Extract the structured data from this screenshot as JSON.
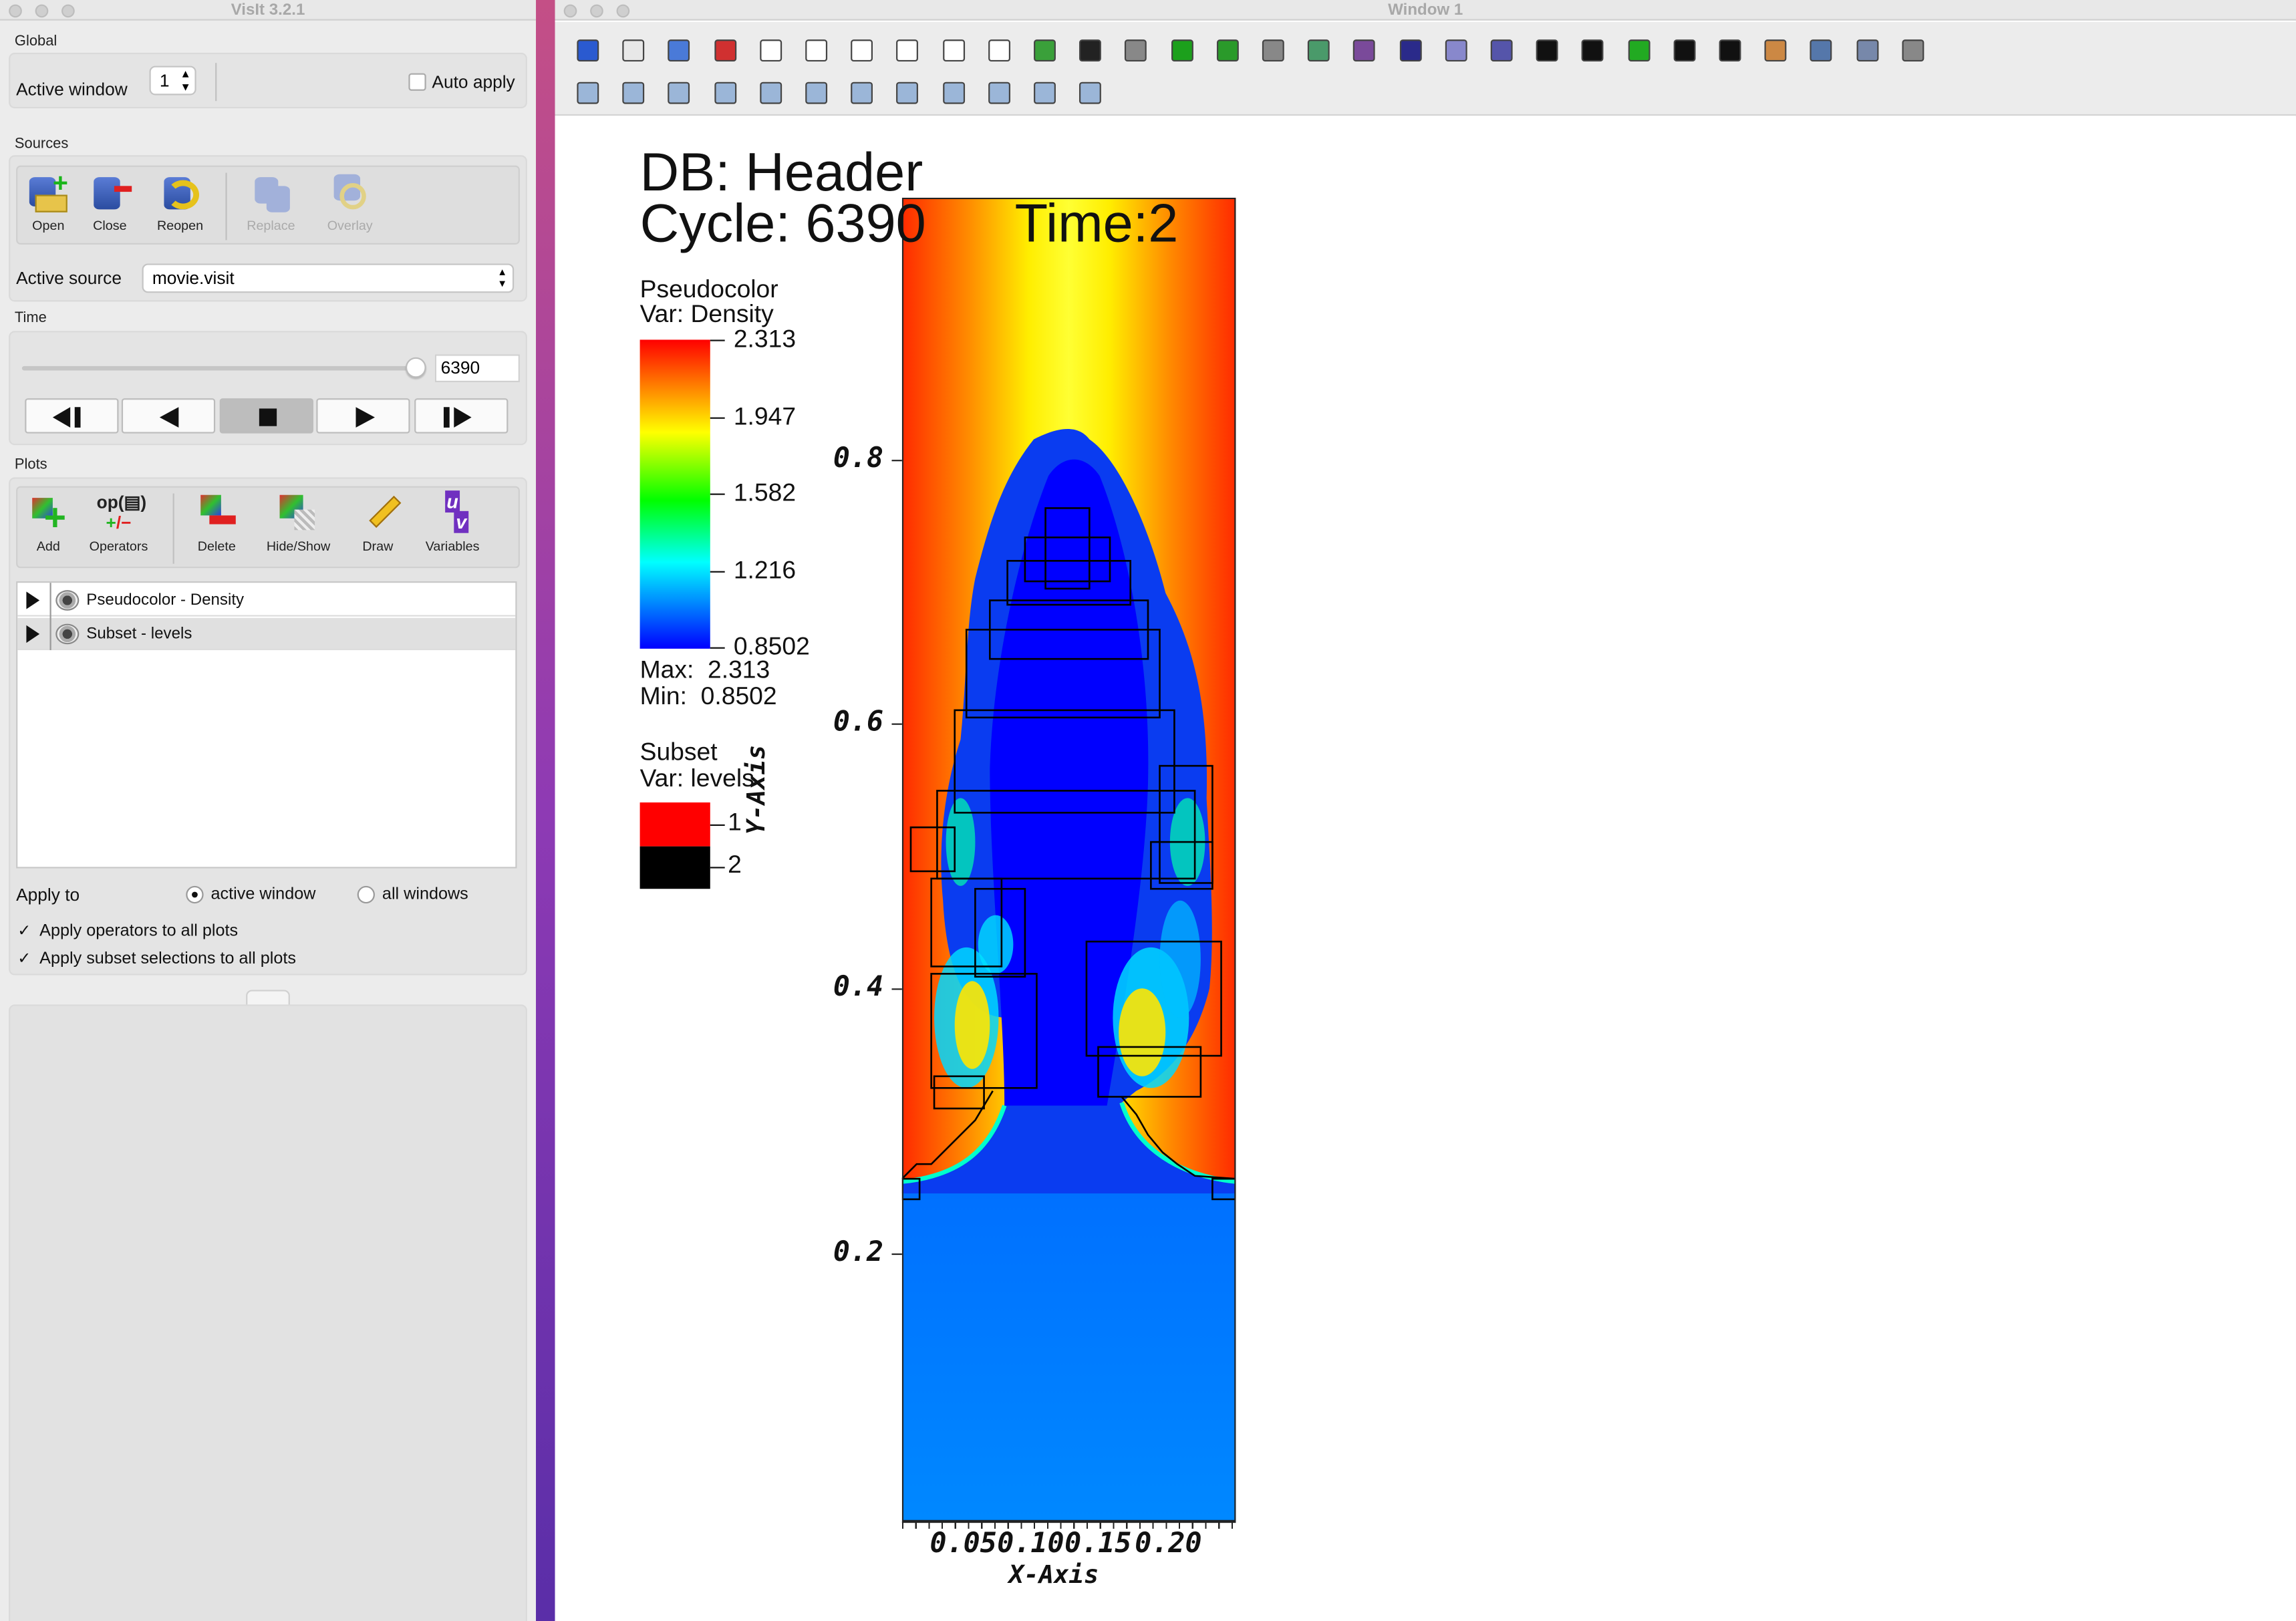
{
  "left_window": {
    "title": "VisIt 3.2.1",
    "global": {
      "label": "Global",
      "active_window_label": "Active window",
      "active_window_value": "1",
      "auto_apply_label": "Auto apply"
    },
    "sources": {
      "label": "Sources",
      "buttons": [
        "Open",
        "Close",
        "Reopen",
        "Replace",
        "Overlay"
      ],
      "active_source_label": "Active source",
      "active_source_value": "movie.visit"
    },
    "time": {
      "label": "Time",
      "value": "6390",
      "slider_fraction": 1.0
    },
    "plots": {
      "label": "Plots",
      "buttons": [
        "Add",
        "Operators",
        "Delete",
        "Hide/Show",
        "Draw",
        "Variables"
      ],
      "list": [
        "Pseudocolor - Density",
        "Subset - levels"
      ],
      "apply_to_label": "Apply to",
      "apply_active": "active window",
      "apply_all": "all windows",
      "apply_ops_label": "Apply operators to all plots",
      "apply_subset_label": "Apply subset selections to all plots",
      "checkmark": "✓"
    }
  },
  "viewer": {
    "title": "Window 1",
    "db_text": "DB: Header",
    "cycle_text": "Cycle: 6390",
    "time_text": "Time:2",
    "legend1": {
      "title": "Pseudocolor",
      "var": "Var: Density",
      "ticks": [
        "2.313",
        "1.947",
        "1.582",
        "1.216",
        "0.8502"
      ],
      "max": "Max:  2.313",
      "min": "Min:  0.8502"
    },
    "legend2": {
      "title": "Subset",
      "var": "Var: levels",
      "entries": [
        {
          "label": "1",
          "color": "#ff0000"
        },
        {
          "label": "2",
          "color": "#000000"
        }
      ]
    },
    "y_axis_title": "Y-Axis",
    "x_axis_title": "X-Axis",
    "y_ticks": [
      "0.8",
      "0.6",
      "0.4",
      "0.2"
    ],
    "x_ticks": [
      "0.05",
      "0.10",
      "0.15",
      "0.20"
    ]
  },
  "colors": {
    "accent_red": "#ff0000",
    "blue": "#0000ff",
    "background": "#ffffff"
  }
}
